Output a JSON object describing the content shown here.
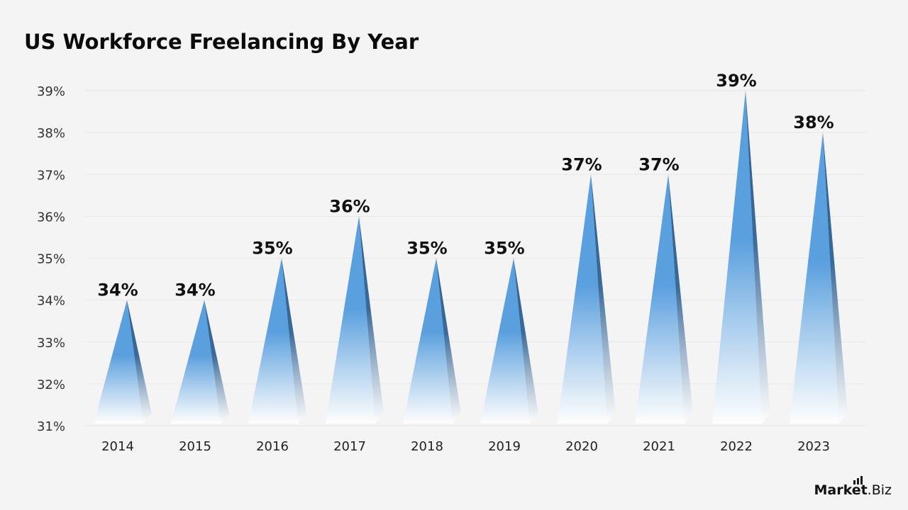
{
  "chart_data": {
    "type": "bar",
    "title": "US Workforce Freelancing By Year",
    "xlabel": "",
    "ylabel": "",
    "categories": [
      "2014",
      "2015",
      "2016",
      "2017",
      "2018",
      "2019",
      "2020",
      "2021",
      "2022",
      "2023"
    ],
    "values": [
      34,
      34,
      35,
      36,
      35,
      35,
      37,
      37,
      39,
      38
    ],
    "data_labels": [
      "34%",
      "34%",
      "35%",
      "36%",
      "35%",
      "35%",
      "37%",
      "37%",
      "39%",
      "38%"
    ],
    "ylim": [
      31,
      39
    ],
    "yticks": [
      31,
      32,
      33,
      34,
      35,
      36,
      37,
      38,
      39
    ],
    "ytick_labels": [
      "31%",
      "32%",
      "33%",
      "34%",
      "35%",
      "36%",
      "37%",
      "38%",
      "39%"
    ],
    "grid": true,
    "legend": "none",
    "mark_shape": "pyramid"
  },
  "branding": {
    "name": "Market",
    "suffix": ".Biz"
  },
  "colors": {
    "background": "#f4f4f5",
    "bar_main": "#5ba0de",
    "bar_side": "#2f5f8e",
    "bar_fade": "#ffffff",
    "text": "#111111"
  }
}
